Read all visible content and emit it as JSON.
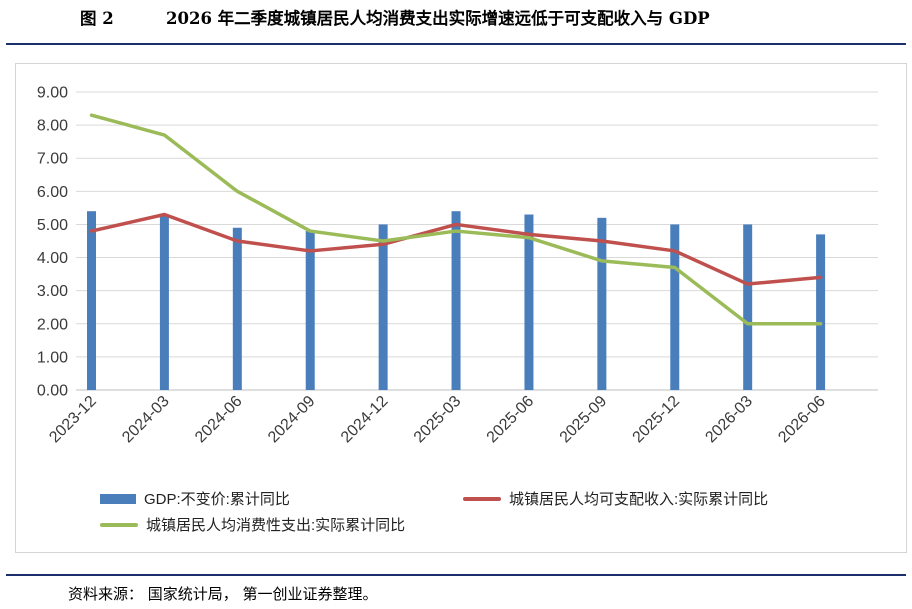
{
  "figure": {
    "number": "图 2",
    "title": "2026 年二季度城镇居民人均消费支出实际增速远低于可支配收入与 GDP",
    "source": "资料来源： 国家统计局， 第一创业证券整理。"
  },
  "colors": {
    "gdp_bar": "#4a7ebb",
    "income_line": "#c0504d",
    "consumption_line": "#9bbb59",
    "rule": "#1a2f6b"
  },
  "chart_data": {
    "type": "bar+line",
    "categories": [
      "2023-12",
      "2024-03",
      "2024-06",
      "2024-09",
      "2024-12",
      "2025-03",
      "2025-06",
      "2025-09",
      "2025-12",
      "2026-03",
      "2026-06"
    ],
    "ylim": [
      0,
      9
    ],
    "yticks": [
      "0.00",
      "1.00",
      "2.00",
      "3.00",
      "4.00",
      "5.00",
      "6.00",
      "7.00",
      "8.00",
      "9.00"
    ],
    "grid": true,
    "legend_position": "bottom",
    "series": [
      {
        "name": "GDP:不变价:累计同比",
        "kind": "bar",
        "values": [
          5.4,
          5.3,
          4.9,
          4.8,
          5.0,
          5.4,
          5.3,
          5.2,
          5.0,
          5.0,
          4.7
        ]
      },
      {
        "name": "城镇居民人均可支配收入:实际累计同比",
        "kind": "line",
        "values": [
          4.8,
          5.3,
          4.5,
          4.2,
          4.4,
          5.0,
          4.7,
          4.5,
          4.2,
          3.2,
          3.4
        ]
      },
      {
        "name": "城镇居民人均消费性支出:实际累计同比",
        "kind": "line",
        "values": [
          8.3,
          7.7,
          6.0,
          4.8,
          4.5,
          4.8,
          4.6,
          3.9,
          3.7,
          2.0,
          2.0
        ]
      }
    ]
  }
}
